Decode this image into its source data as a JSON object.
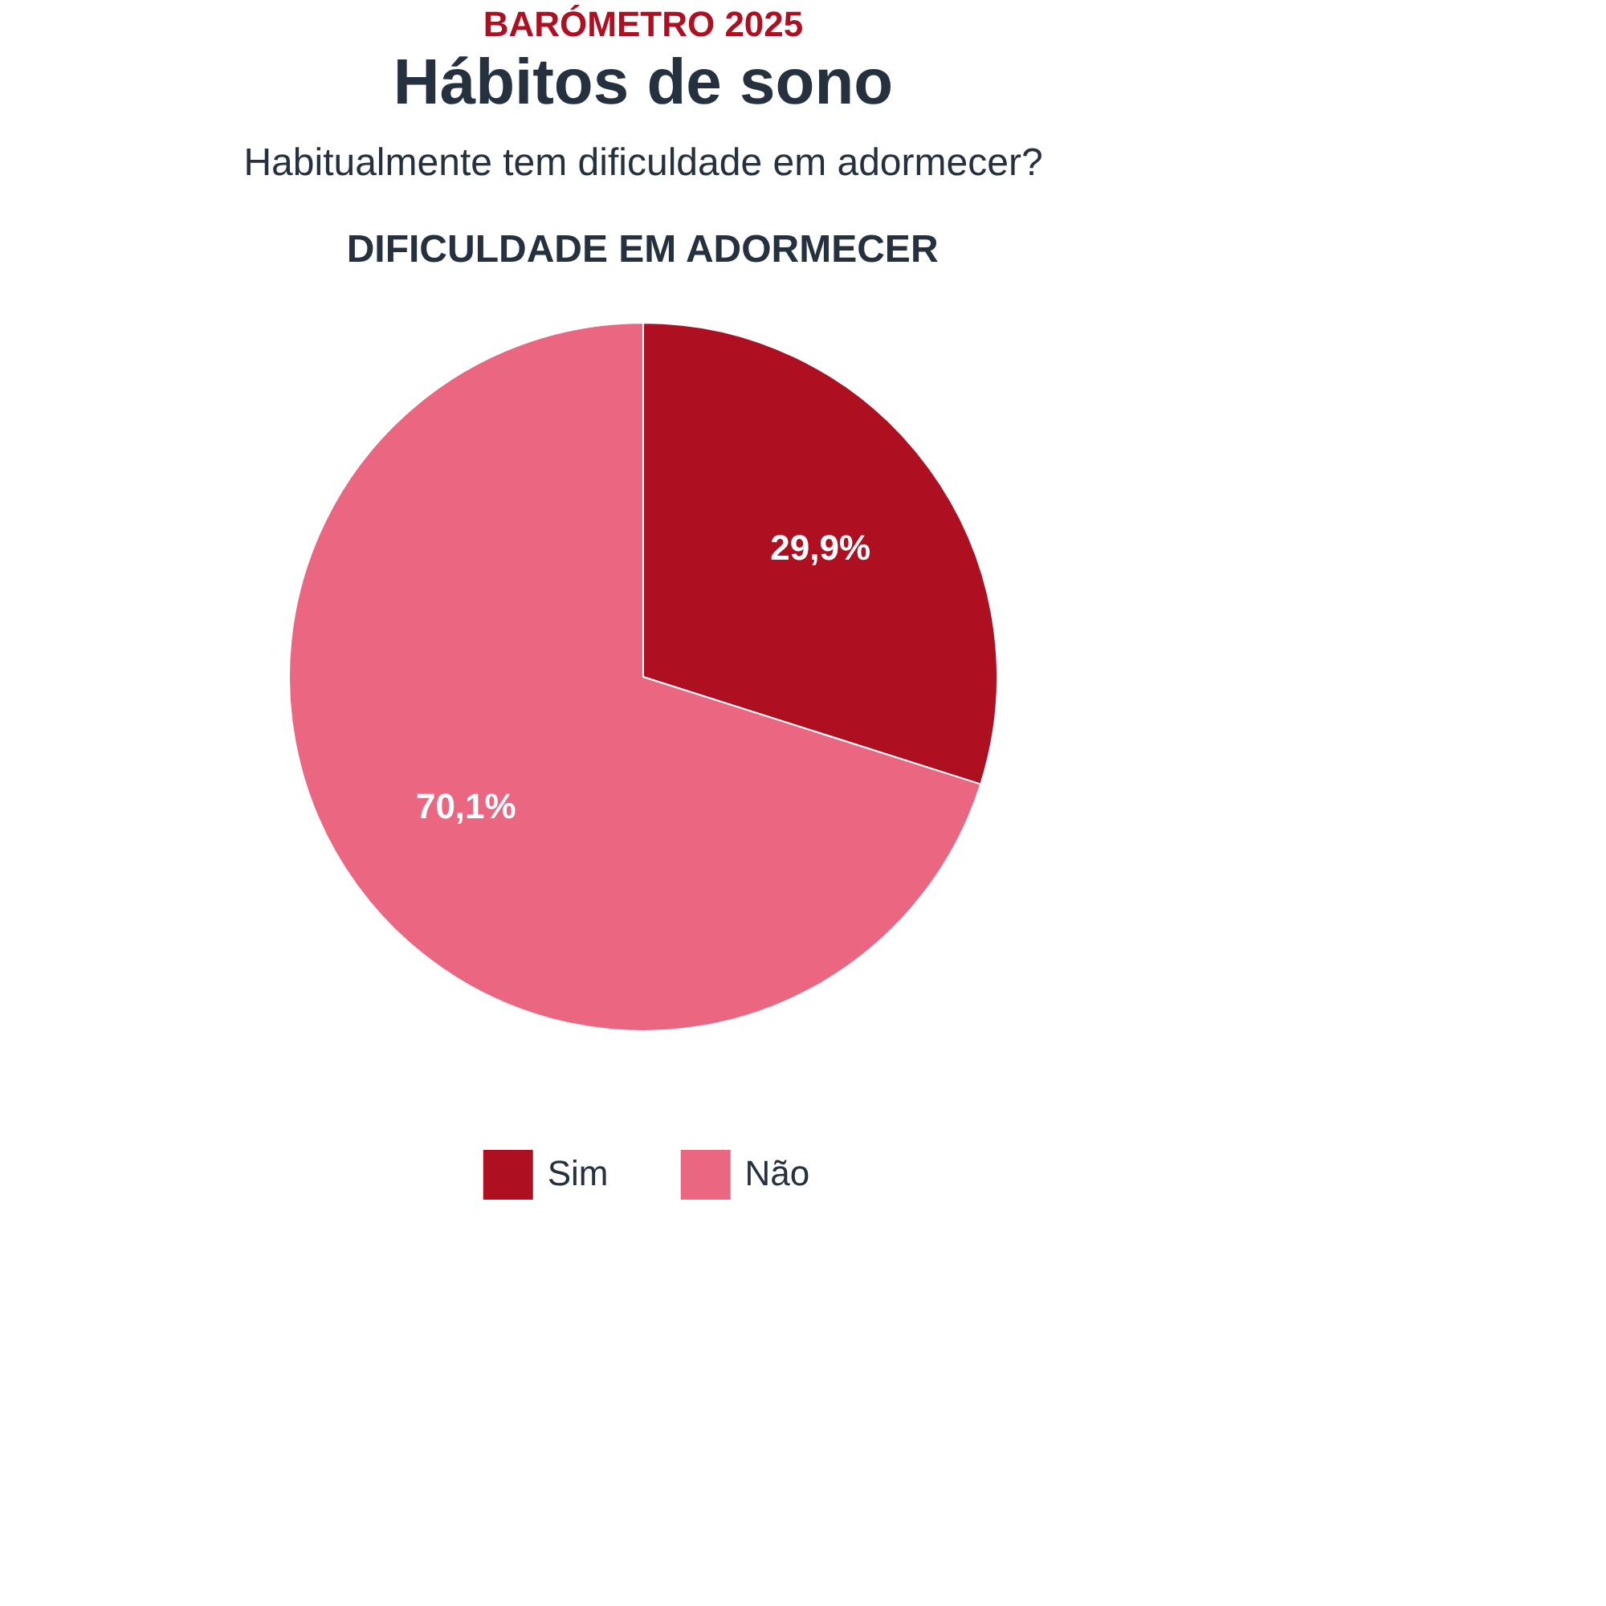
{
  "chart_data": {
    "type": "pie",
    "title": "Hábitos de sono",
    "subtitle": "BARÓMETRO 2025",
    "annotations": [
      "Habitualmente tem dificuldade em adormecer?",
      "DIFICULDADE EM ADORMECER"
    ],
    "categories": [
      "Sim",
      "Não"
    ],
    "values": [
      29.9,
      70.1
    ],
    "colors": [
      "#ae1022",
      "#eb6680"
    ],
    "value_labels": [
      "29,9%",
      "70,1%"
    ],
    "legend": "bottom"
  }
}
